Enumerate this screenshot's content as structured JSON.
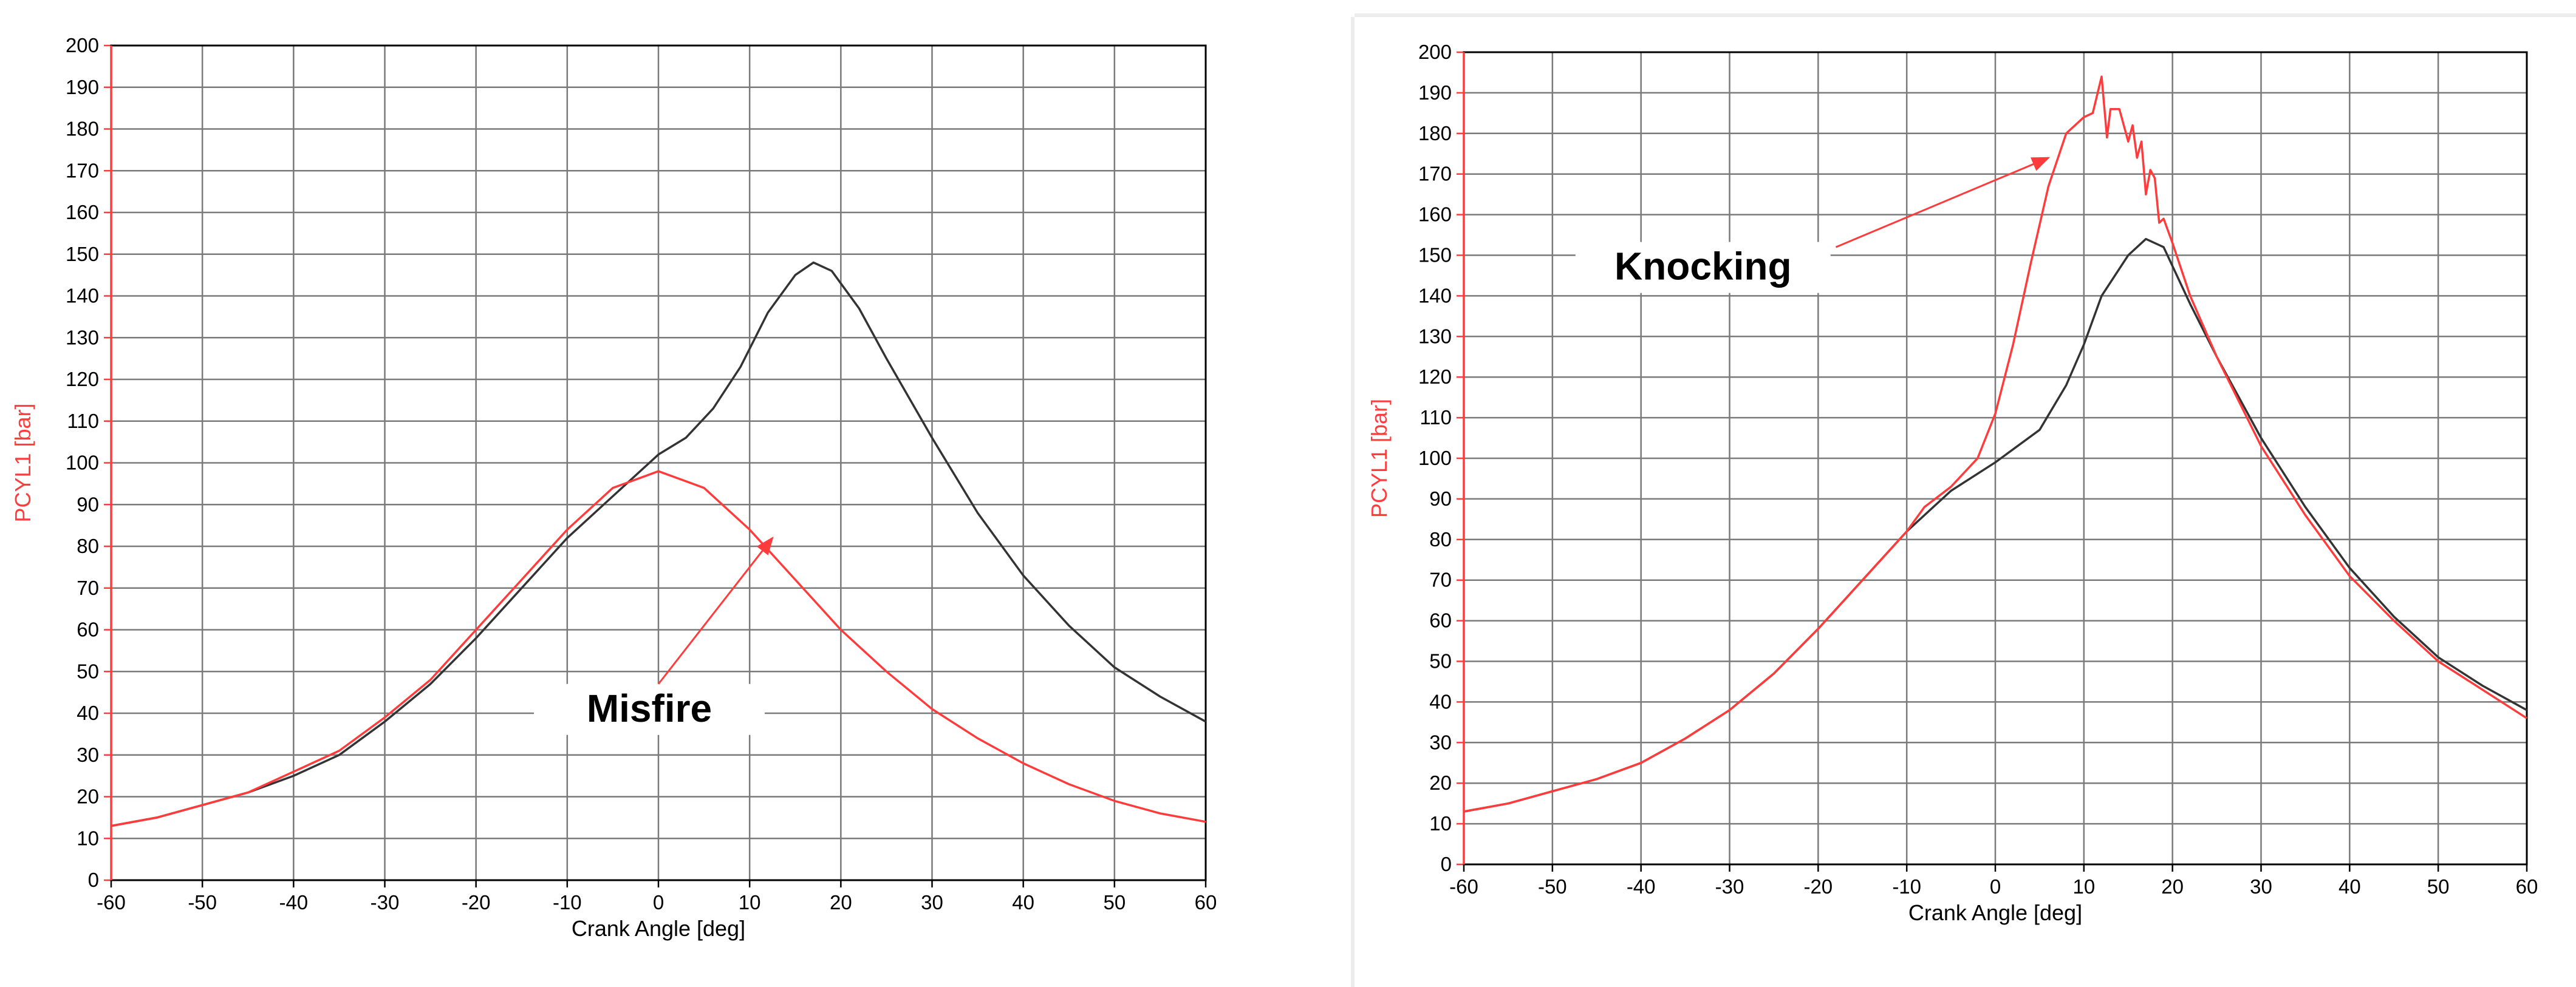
{
  "colors": {
    "red": "#ff3b3b",
    "black": "#333333",
    "grid": "#7a7a7a",
    "axis": "#000000"
  },
  "chart_data": [
    {
      "type": "line",
      "xlabel": "Crank Angle [deg]",
      "ylabel": "PCYL1 [bar]",
      "xlim": [
        -60,
        60
      ],
      "ylim": [
        0,
        200
      ],
      "x_ticks": [
        -60,
        -50,
        -40,
        -30,
        -20,
        -10,
        0,
        10,
        20,
        30,
        40,
        50,
        60
      ],
      "y_ticks": [
        0,
        10,
        20,
        30,
        40,
        50,
        60,
        70,
        80,
        90,
        100,
        110,
        120,
        130,
        140,
        150,
        160,
        170,
        180,
        190,
        200
      ],
      "grid": true,
      "annotation": {
        "text": "Misfire",
        "text_pos": [
          -1,
          38
        ],
        "arrow_from": [
          0,
          47
        ],
        "arrow_to": [
          12.5,
          82
        ]
      },
      "series": [
        {
          "color": "black",
          "x": [
            -60,
            -55,
            -50,
            -45,
            -40,
            -35,
            -30,
            -25,
            -20,
            -15,
            -10,
            -5,
            0,
            3,
            6,
            9,
            12,
            15,
            17,
            19,
            22,
            25,
            30,
            35,
            40,
            45,
            50,
            55,
            60
          ],
          "values": [
            13,
            15,
            18,
            21,
            25,
            30,
            38,
            47,
            58,
            70,
            82,
            92,
            102,
            106,
            113,
            123,
            136,
            145,
            148,
            146,
            137,
            125,
            106,
            88,
            73,
            61,
            51,
            44,
            38
          ]
        },
        {
          "color": "red",
          "x": [
            -60,
            -55,
            -50,
            -45,
            -40,
            -35,
            -30,
            -25,
            -20,
            -15,
            -10,
            -5,
            0,
            5,
            10,
            15,
            20,
            25,
            30,
            35,
            40,
            45,
            50,
            55,
            60
          ],
          "values": [
            13,
            15,
            18,
            21,
            26,
            31,
            39,
            48,
            60,
            72,
            84,
            94,
            98,
            94,
            84,
            72,
            60,
            50,
            41,
            34,
            28,
            23,
            19,
            16,
            14
          ]
        }
      ]
    },
    {
      "type": "line",
      "xlabel": "Crank Angle [deg]",
      "ylabel": "PCYL1 [bar]",
      "xlim": [
        -60,
        60
      ],
      "ylim": [
        0,
        200
      ],
      "x_ticks": [
        -60,
        -50,
        -40,
        -30,
        -20,
        -10,
        0,
        10,
        20,
        30,
        40,
        50,
        60
      ],
      "y_ticks": [
        0,
        10,
        20,
        30,
        40,
        50,
        60,
        70,
        80,
        90,
        100,
        110,
        120,
        130,
        140,
        150,
        160,
        170,
        180,
        190,
        200
      ],
      "grid": true,
      "annotation": {
        "text": "Knocking",
        "text_pos": [
          -33,
          144
        ],
        "arrow_from": [
          -18,
          152
        ],
        "arrow_to": [
          6,
          174
        ]
      },
      "series": [
        {
          "color": "black",
          "x": [
            -60,
            -55,
            -50,
            -45,
            -40,
            -35,
            -30,
            -25,
            -20,
            -15,
            -10,
            -5,
            0,
            5,
            8,
            10,
            12,
            15,
            17,
            19,
            22,
            25,
            30,
            35,
            40,
            45,
            50,
            55,
            60
          ],
          "values": [
            13,
            15,
            18,
            21,
            25,
            31,
            38,
            47,
            58,
            70,
            82,
            92,
            99,
            107,
            118,
            128,
            140,
            150,
            154,
            152,
            138,
            125,
            105,
            88,
            73,
            61,
            51,
            44,
            38
          ]
        },
        {
          "color": "red",
          "x": [
            -60,
            -55,
            -50,
            -45,
            -40,
            -35,
            -30,
            -25,
            -20,
            -15,
            -10,
            -8,
            -5,
            -2,
            0,
            2,
            4,
            6,
            8,
            10,
            11,
            12,
            12.6,
            13,
            14,
            15,
            15.5,
            16,
            16.5,
            17,
            17.5,
            18,
            18.5,
            19,
            20,
            22,
            25,
            30,
            35,
            40,
            45,
            50,
            55,
            60
          ],
          "values": [
            13,
            15,
            18,
            21,
            25,
            31,
            38,
            47,
            58,
            70,
            82,
            88,
            93,
            100,
            111,
            128,
            148,
            167,
            180,
            184,
            185,
            194,
            179,
            186,
            186,
            178,
            182,
            174,
            178,
            165,
            171,
            169,
            158,
            159,
            153,
            140,
            125,
            103,
            86,
            71,
            60,
            50,
            43,
            36
          ]
        }
      ]
    }
  ]
}
